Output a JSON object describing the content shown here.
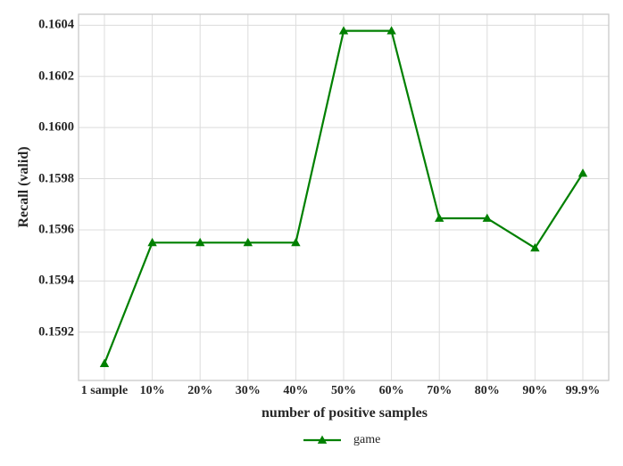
{
  "chart_data": {
    "type": "line",
    "title": "",
    "xlabel": "number of positive samples",
    "ylabel": "Recall (valid)",
    "categories": [
      "1 sample",
      "10%",
      "20%",
      "30%",
      "40%",
      "50%",
      "60%",
      "70%",
      "80%",
      "90%",
      "99.9%"
    ],
    "series": [
      {
        "name": "game",
        "color": "#008000",
        "marker": "triangle-up",
        "values": [
          0.159077,
          0.15955,
          0.15955,
          0.15955,
          0.15955,
          0.160378,
          0.160378,
          0.159645,
          0.159645,
          0.159529,
          0.159821
        ]
      }
    ],
    "yticks": [
      0.1592,
      0.1594,
      0.1596,
      0.1598,
      0.16,
      0.1602,
      0.1604
    ],
    "ytick_labels": [
      "0.1592",
      "0.1594",
      "0.1596",
      "0.1598",
      "0.1600",
      "0.1602",
      "0.1604"
    ],
    "ylim": [
      0.159011,
      0.160443
    ],
    "grid": true,
    "legend_position": "bottom-center",
    "grid_color": "#dcdcdc",
    "spine_color": "#c9c9c9",
    "text_color": "#262626",
    "background_color": "#ffffff"
  }
}
